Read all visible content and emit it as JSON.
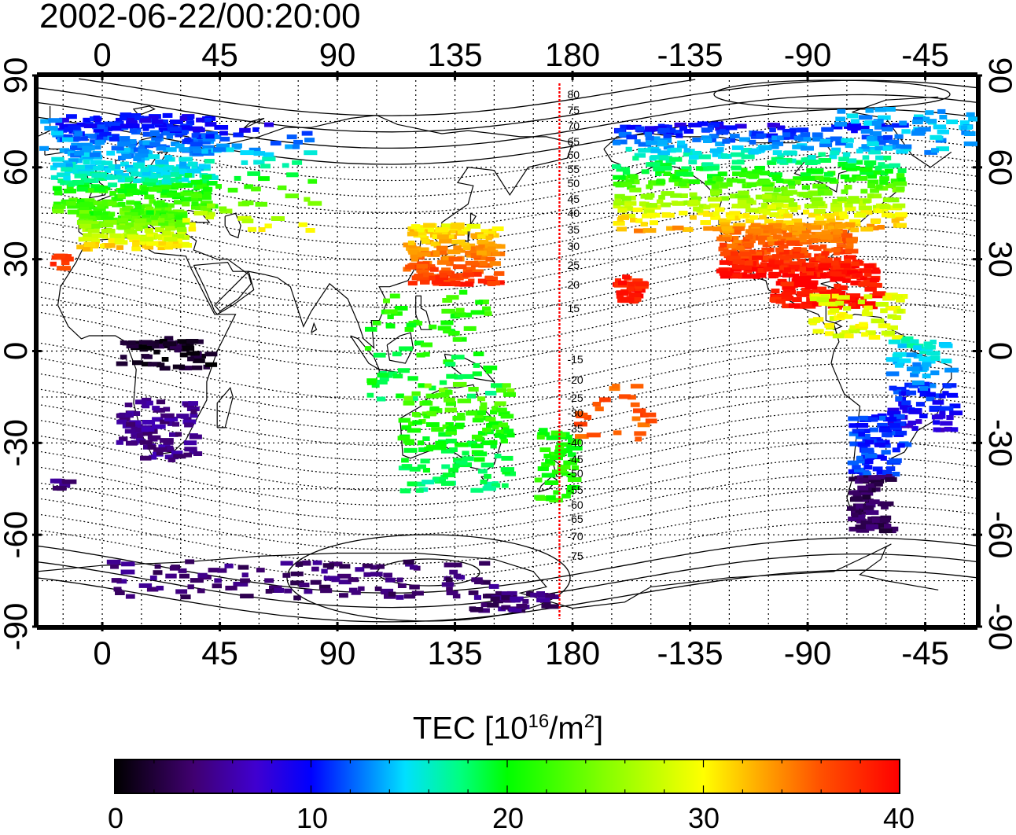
{
  "timestamp": "2002-06-22/00:20:00",
  "map": {
    "lon_ticks": [
      "0",
      "45",
      "90",
      "135",
      "180",
      "-135",
      "-90",
      "-45"
    ],
    "lat_ticks": [
      "90",
      "60",
      "30",
      "0",
      "-30",
      "-60",
      "-90"
    ],
    "dateline_contours": [
      "80",
      "75",
      "70",
      "65",
      "60",
      "55",
      "50",
      "45",
      "40",
      "35",
      "30",
      "25",
      "20",
      "15",
      "-15",
      "-20",
      "-25",
      "-30",
      "-35",
      "-40",
      "-45",
      "-50",
      "-55",
      "-60",
      "-65",
      "-70",
      "-75"
    ]
  },
  "colorbar": {
    "title_text": "TEC  [10",
    "title_exp1": "16",
    "title_mid": "/m",
    "title_exp2": "2",
    "title_end": "]",
    "labels": [
      "0",
      "10",
      "20",
      "30",
      "40"
    ],
    "colors": [
      "#000000",
      "#400070",
      "#4000d0",
      "#0000ff",
      "#0070ff",
      "#00e0ff",
      "#00ff80",
      "#00ff00",
      "#80ff00",
      "#ffff00",
      "#ffa000",
      "#ff5000",
      "#ff0000"
    ]
  },
  "regions": [
    {
      "name": "europe",
      "tec": 13
    },
    {
      "name": "mediterranean",
      "tec": 22
    },
    {
      "name": "north-america",
      "tec": 27
    },
    {
      "name": "gulf-mexico",
      "tec": 39
    },
    {
      "name": "japan-china",
      "tec": 31
    },
    {
      "name": "southern-africa",
      "tec": 5
    },
    {
      "name": "central-africa",
      "tec": 2
    },
    {
      "name": "australia",
      "tec": 20
    },
    {
      "name": "south-america-north",
      "tec": 12
    },
    {
      "name": "south-america-south",
      "tec": 3
    },
    {
      "name": "antarctica",
      "tec": 4
    },
    {
      "name": "pacific-hawaii",
      "tec": 39
    },
    {
      "name": "new-zealand",
      "tec": 21
    }
  ]
}
